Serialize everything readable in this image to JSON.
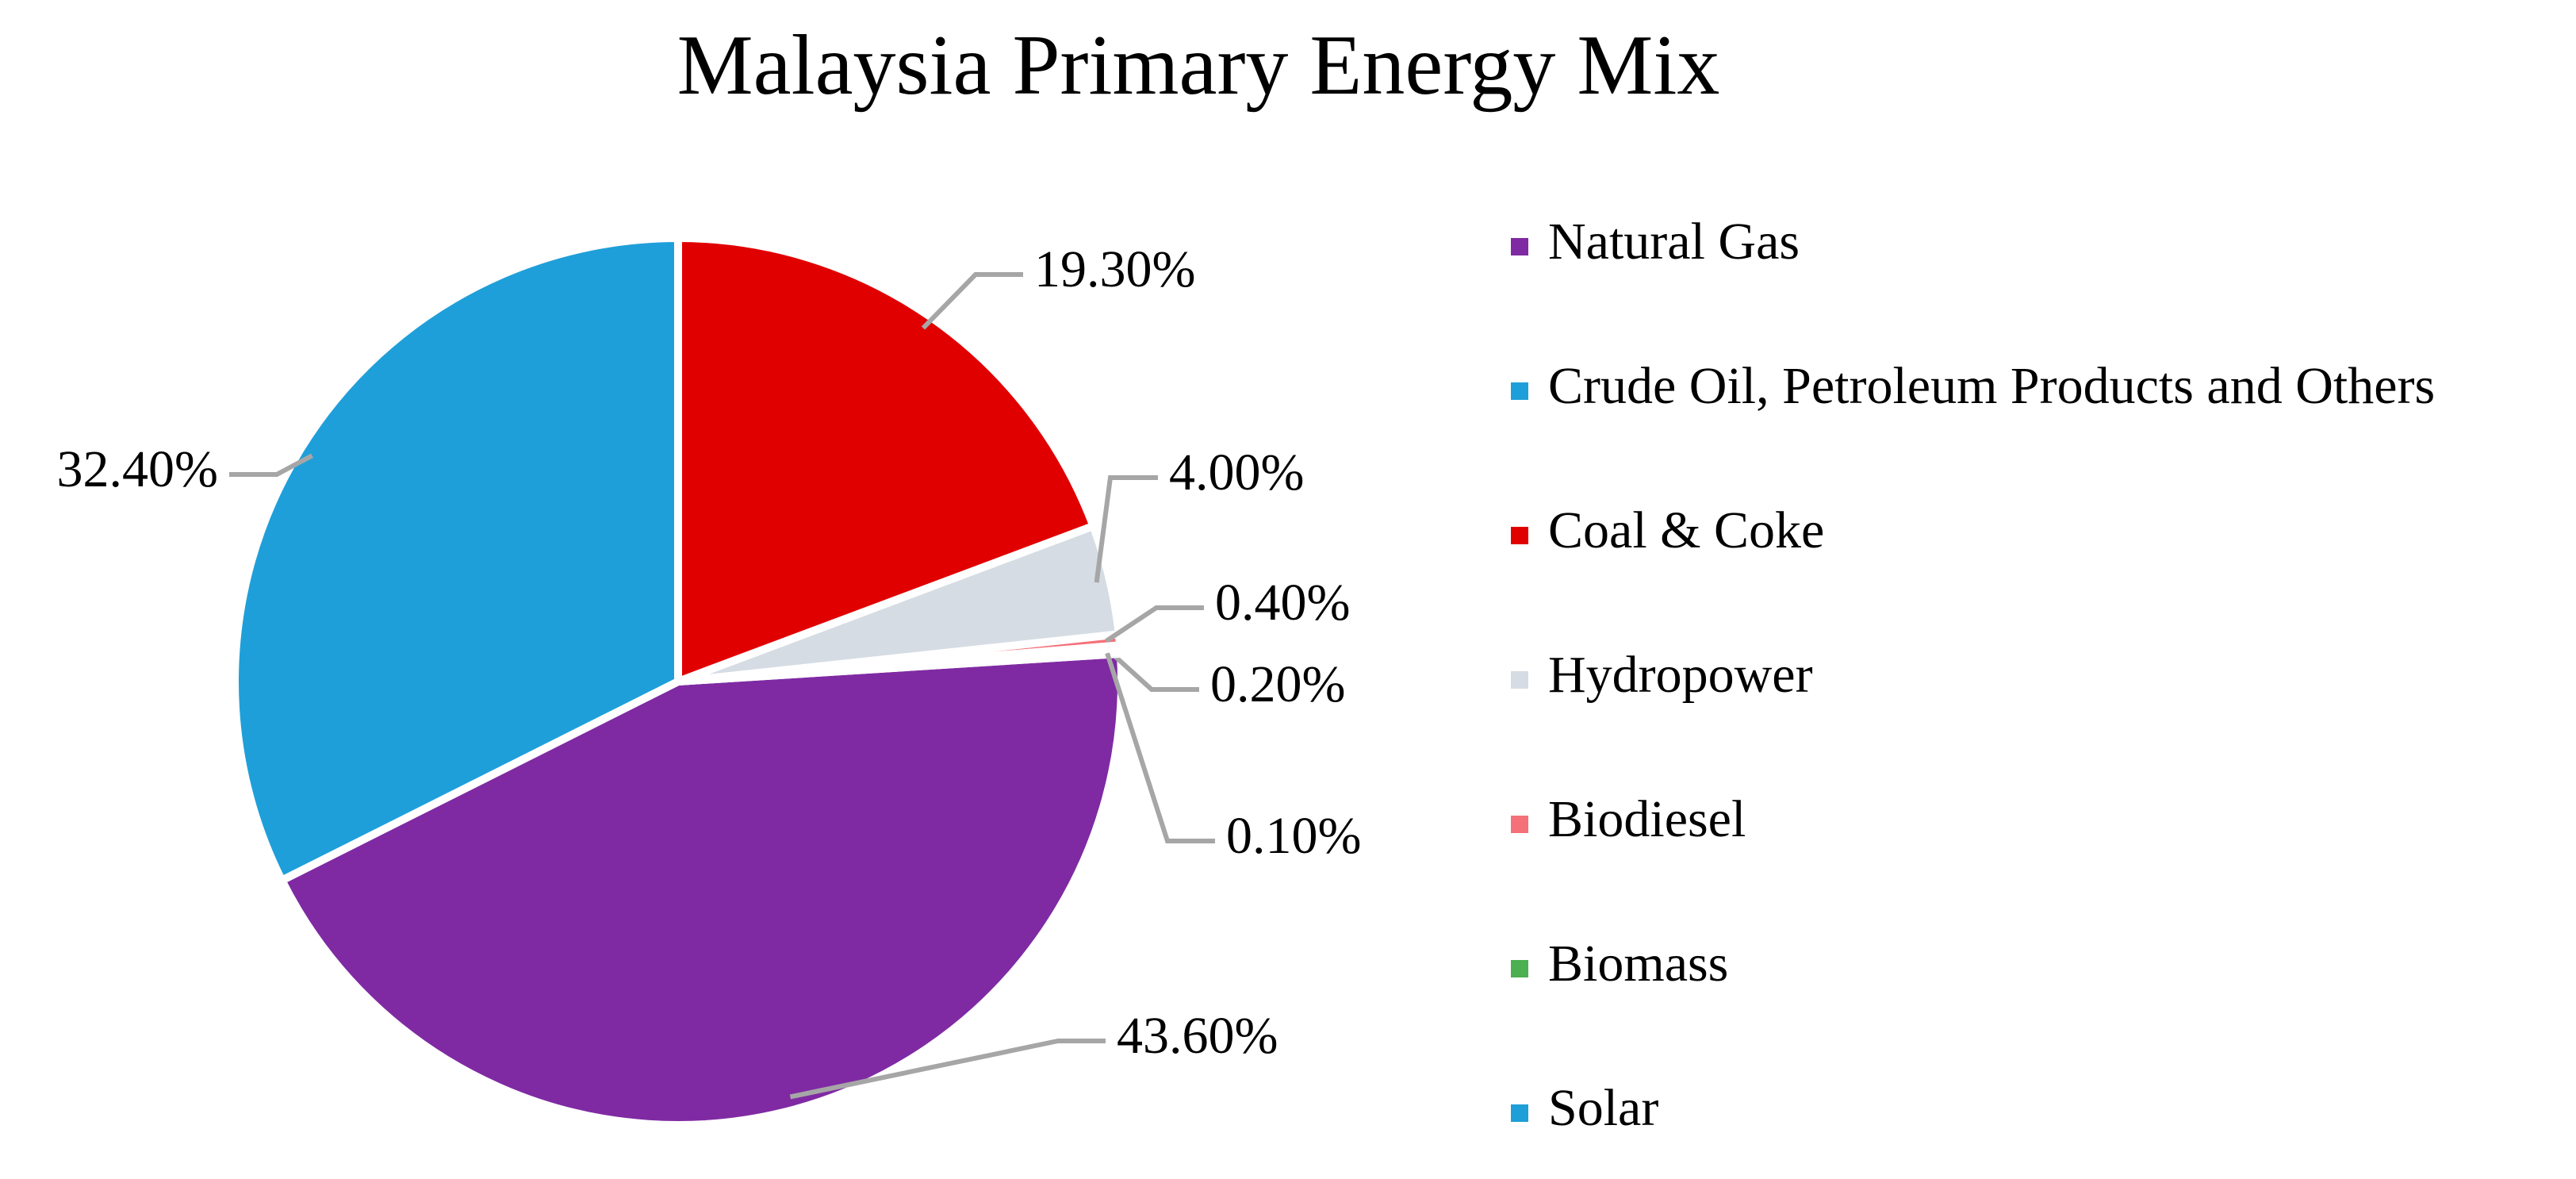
{
  "chart_data": {
    "type": "pie",
    "title": "Malaysia Primary Energy Mix",
    "categories": [
      "Natural Gas",
      "Crude Oil, Petroleum Products and Others",
      "Coal & Coke",
      "Hydropower",
      "Biodiesel",
      "Biomass",
      "Solar"
    ],
    "values": [
      43.6,
      32.4,
      19.3,
      4.0,
      0.4,
      0.2,
      0.1
    ],
    "value_labels": [
      "43.60%",
      "32.40%",
      "19.30%",
      "4.00%",
      "0.40%",
      "0.20%",
      "0.10%"
    ],
    "colors": [
      "#7f2aa3",
      "#1f9fd9",
      "#e00000",
      "#d6dce4",
      "#f4717a",
      "#4caf50",
      "#1e9fd8"
    ],
    "legend": "right"
  }
}
